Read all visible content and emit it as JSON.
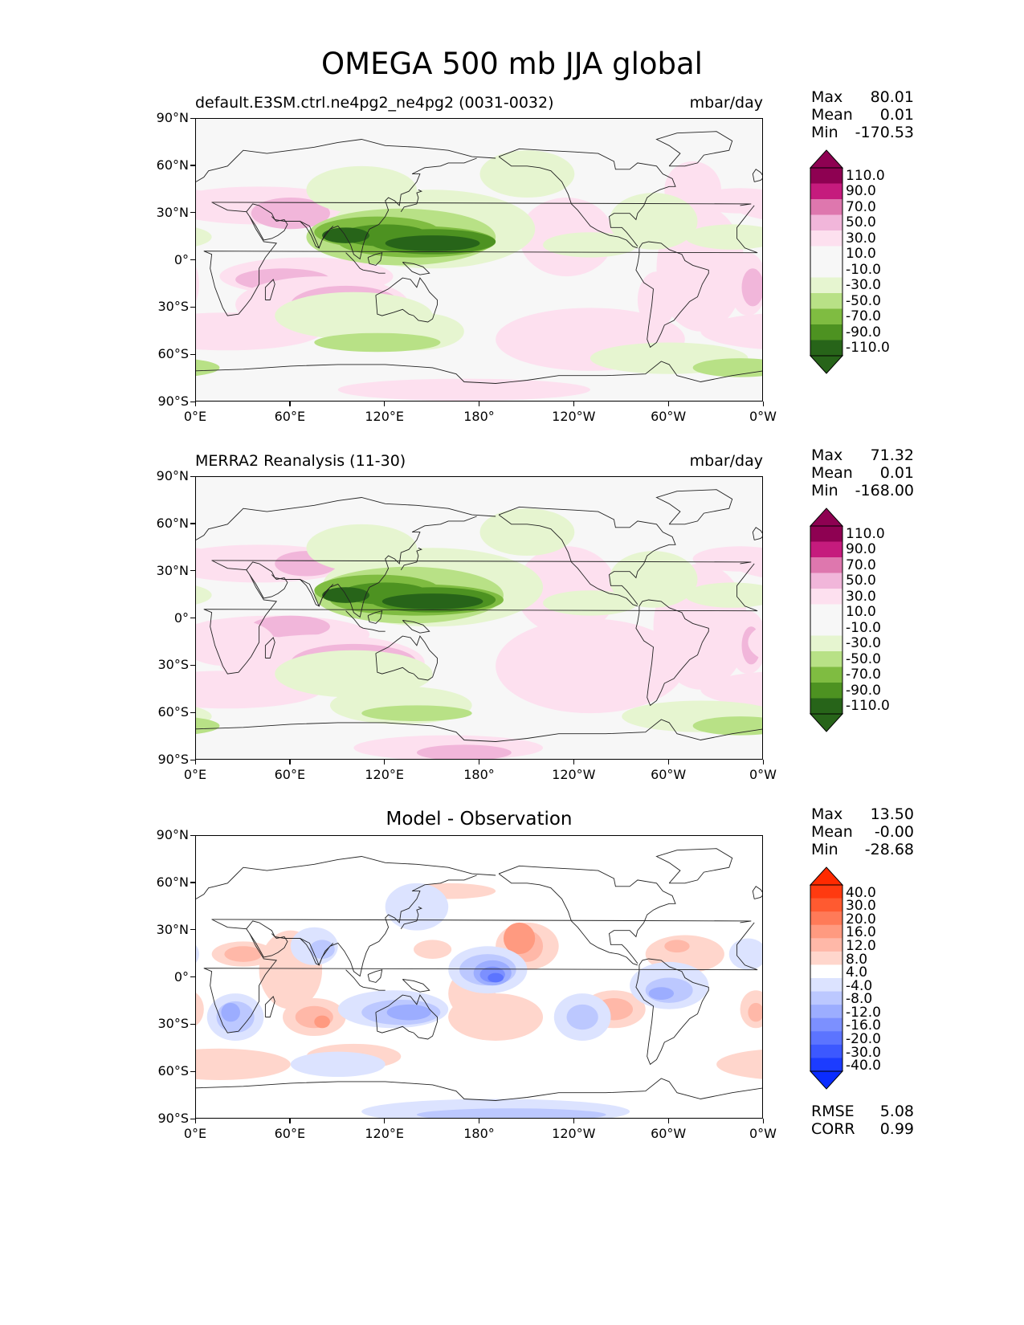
{
  "figure": {
    "title": "OMEGA 500 mb JJA global",
    "lat_ticks": [
      "90°N",
      "60°N",
      "30°N",
      "0°",
      "30°S",
      "60°S",
      "90°S"
    ],
    "lon_ticks": [
      "0°E",
      "60°E",
      "120°E",
      "180°",
      "120°W",
      "60°W",
      "0°W"
    ]
  },
  "panels": [
    {
      "title_left": "default.E3SM.ctrl.ne4pg2_ne4pg2 (0031-0032)",
      "units": "mbar/day",
      "stats": {
        "max_label": "Max",
        "max": "80.01",
        "mean_label": "Mean",
        "mean": "0.01",
        "min_label": "Min",
        "min": "-170.53"
      },
      "colorbar": {
        "levels": [
          "110.0",
          "90.0",
          "70.0",
          "50.0",
          "30.0",
          "10.0",
          "-10.0",
          "-30.0",
          "-50.0",
          "-70.0",
          "-90.0",
          "-110.0"
        ],
        "colors": [
          "#8e0152",
          "#c51b7d",
          "#de77ae",
          "#f1b6da",
          "#fde0ef",
          "#f7f7f7",
          "#f7f7f7",
          "#e6f5d0",
          "#b8e186",
          "#7fbc41",
          "#4d9221",
          "#276419"
        ],
        "top_color": "#8e0152",
        "bottom_color": "#276419"
      }
    },
    {
      "title_left": "MERRA2 Reanalysis (11-30)",
      "units": "mbar/day",
      "stats": {
        "max_label": "Max",
        "max": "71.32",
        "mean_label": "Mean",
        "mean": "0.01",
        "min_label": "Min",
        "min": "-168.00"
      },
      "colorbar": {
        "levels": [
          "110.0",
          "90.0",
          "70.0",
          "50.0",
          "30.0",
          "10.0",
          "-10.0",
          "-30.0",
          "-50.0",
          "-70.0",
          "-90.0",
          "-110.0"
        ],
        "colors": [
          "#8e0152",
          "#c51b7d",
          "#de77ae",
          "#f1b6da",
          "#fde0ef",
          "#f7f7f7",
          "#f7f7f7",
          "#e6f5d0",
          "#b8e186",
          "#7fbc41",
          "#4d9221",
          "#276419"
        ],
        "top_color": "#8e0152",
        "bottom_color": "#276419"
      }
    },
    {
      "title_center": "Model - Observation",
      "stats": {
        "max_label": "Max",
        "max": "13.50",
        "mean_label": "Mean",
        "mean": "-0.00",
        "min_label": "Min",
        "min": "-28.68"
      },
      "metrics": {
        "rmse_label": "RMSE",
        "rmse": "5.08",
        "corr_label": "CORR",
        "corr": "0.99"
      },
      "colorbar": {
        "levels": [
          "40.0",
          "30.0",
          "20.0",
          "16.0",
          "12.0",
          "8.0",
          "4.0",
          "-4.0",
          "-8.0",
          "-12.0",
          "-16.0",
          "-20.0",
          "-30.0",
          "-40.0"
        ],
        "colors": [
          "#ff3a10",
          "#ff5a30",
          "#ff7a58",
          "#ff9a80",
          "#ffb8a8",
          "#ffd6cc",
          "#ffffff",
          "#dce3ff",
          "#bcc8ff",
          "#9cadff",
          "#7c90ff",
          "#5c74ff",
          "#3c58ff",
          "#1c3cff"
        ],
        "top_color": "#ff2a00",
        "bottom_color": "#0a2cff"
      }
    }
  ]
}
